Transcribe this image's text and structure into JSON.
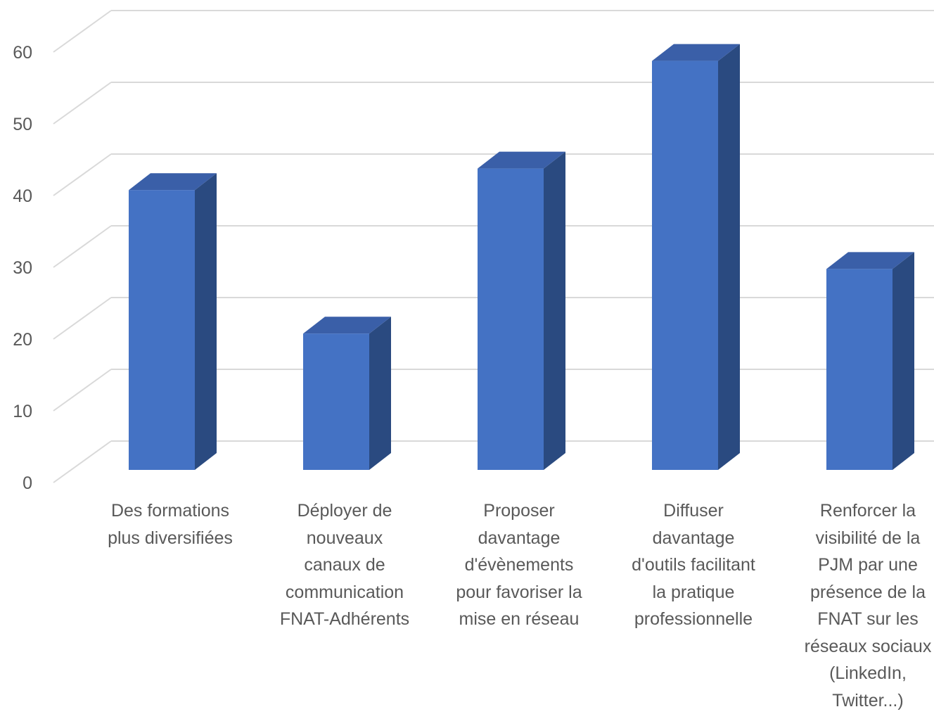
{
  "chart_data": {
    "type": "bar",
    "categories": [
      "Des formations plus diversifiées",
      "Déployer de nouveaux canaux de communication FNAT-Adhérents",
      "Proposer davantage d'évènements pour favoriser la mise en réseau",
      "Diffuser davantage d'outils facilitant la pratique professionnelle",
      "Renforcer la visibilité de la PJM par une présence de la FNAT sur les réseaux sociaux (LinkedIn, Twitter...)"
    ],
    "category_lines": [
      [
        "Des formations",
        "plus diversifiées"
      ],
      [
        "Déployer de",
        "nouveaux",
        "canaux de",
        "communication",
        "FNAT-Adhérents"
      ],
      [
        "Proposer",
        "davantage",
        "d'évènements",
        "pour favoriser la",
        "mise en réseau"
      ],
      [
        "Diffuser",
        "davantage",
        "d'outils facilitant",
        "la pratique",
        "professionnelle"
      ],
      [
        "Renforcer la",
        "visibilité de la",
        "PJM par une",
        "présence de la",
        "FNAT sur les",
        "réseaux sociaux",
        "(LinkedIn,",
        "Twitter...)"
      ]
    ],
    "values": [
      39,
      19,
      42,
      57,
      28
    ],
    "title": "",
    "xlabel": "",
    "ylabel": "",
    "ylim": [
      0,
      60
    ],
    "yticks": [
      "0",
      "10",
      "20",
      "30",
      "40",
      "50",
      "60"
    ],
    "grid": true,
    "style_3d": true,
    "legend": "none",
    "colors": {
      "bar_front": "#4472C4",
      "bar_side": "#2A4A80",
      "bar_top": "#3A5FA8",
      "grid": "#D9D9D9",
      "text": "#595959"
    }
  }
}
